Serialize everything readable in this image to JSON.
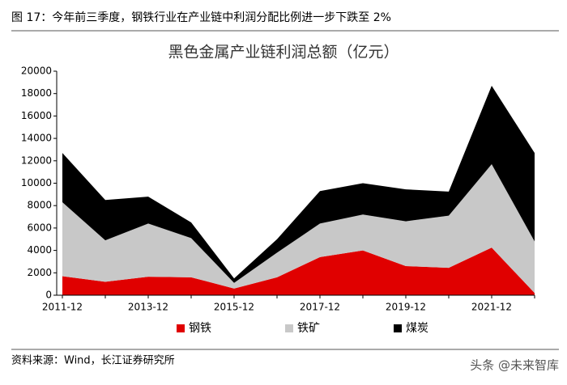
{
  "header": {
    "title": "图 17：今年前三季度，钢铁行业在产业链中利润分配比例进一步下跌至 2%"
  },
  "chart_data": {
    "type": "stacked-area",
    "title": "黑色金属产业链利润总额（亿元）",
    "categories": [
      "2011-12",
      null,
      "2013-12",
      null,
      "2015-12",
      null,
      "2017-12",
      null,
      "2019-12",
      null,
      "2021-12",
      null
    ],
    "series": [
      {
        "name": "钢铁",
        "color": "#e00000",
        "values": [
          1700,
          1200,
          1650,
          1600,
          600,
          1600,
          3400,
          4000,
          2600,
          2450,
          4250,
          200
        ]
      },
      {
        "name": "铁矿",
        "color": "#c8c8c8",
        "values": [
          6600,
          3700,
          4750,
          3500,
          500,
          2200,
          3000,
          3200,
          4000,
          4650,
          7450,
          4600
        ]
      },
      {
        "name": "煤炭",
        "color": "#000000",
        "values": [
          4400,
          3600,
          2400,
          1400,
          400,
          1200,
          2900,
          2800,
          2850,
          2150,
          7000,
          7900
        ]
      }
    ],
    "ylim": [
      0,
      20000
    ],
    "yticks": [
      0,
      2000,
      4000,
      6000,
      8000,
      10000,
      12000,
      14000,
      16000,
      18000,
      20000
    ],
    "grid": false,
    "legend": "bottom"
  },
  "footer": {
    "source": "资料来源：Wind，长江证券研究所",
    "watermark": "头条 @未来智库"
  }
}
